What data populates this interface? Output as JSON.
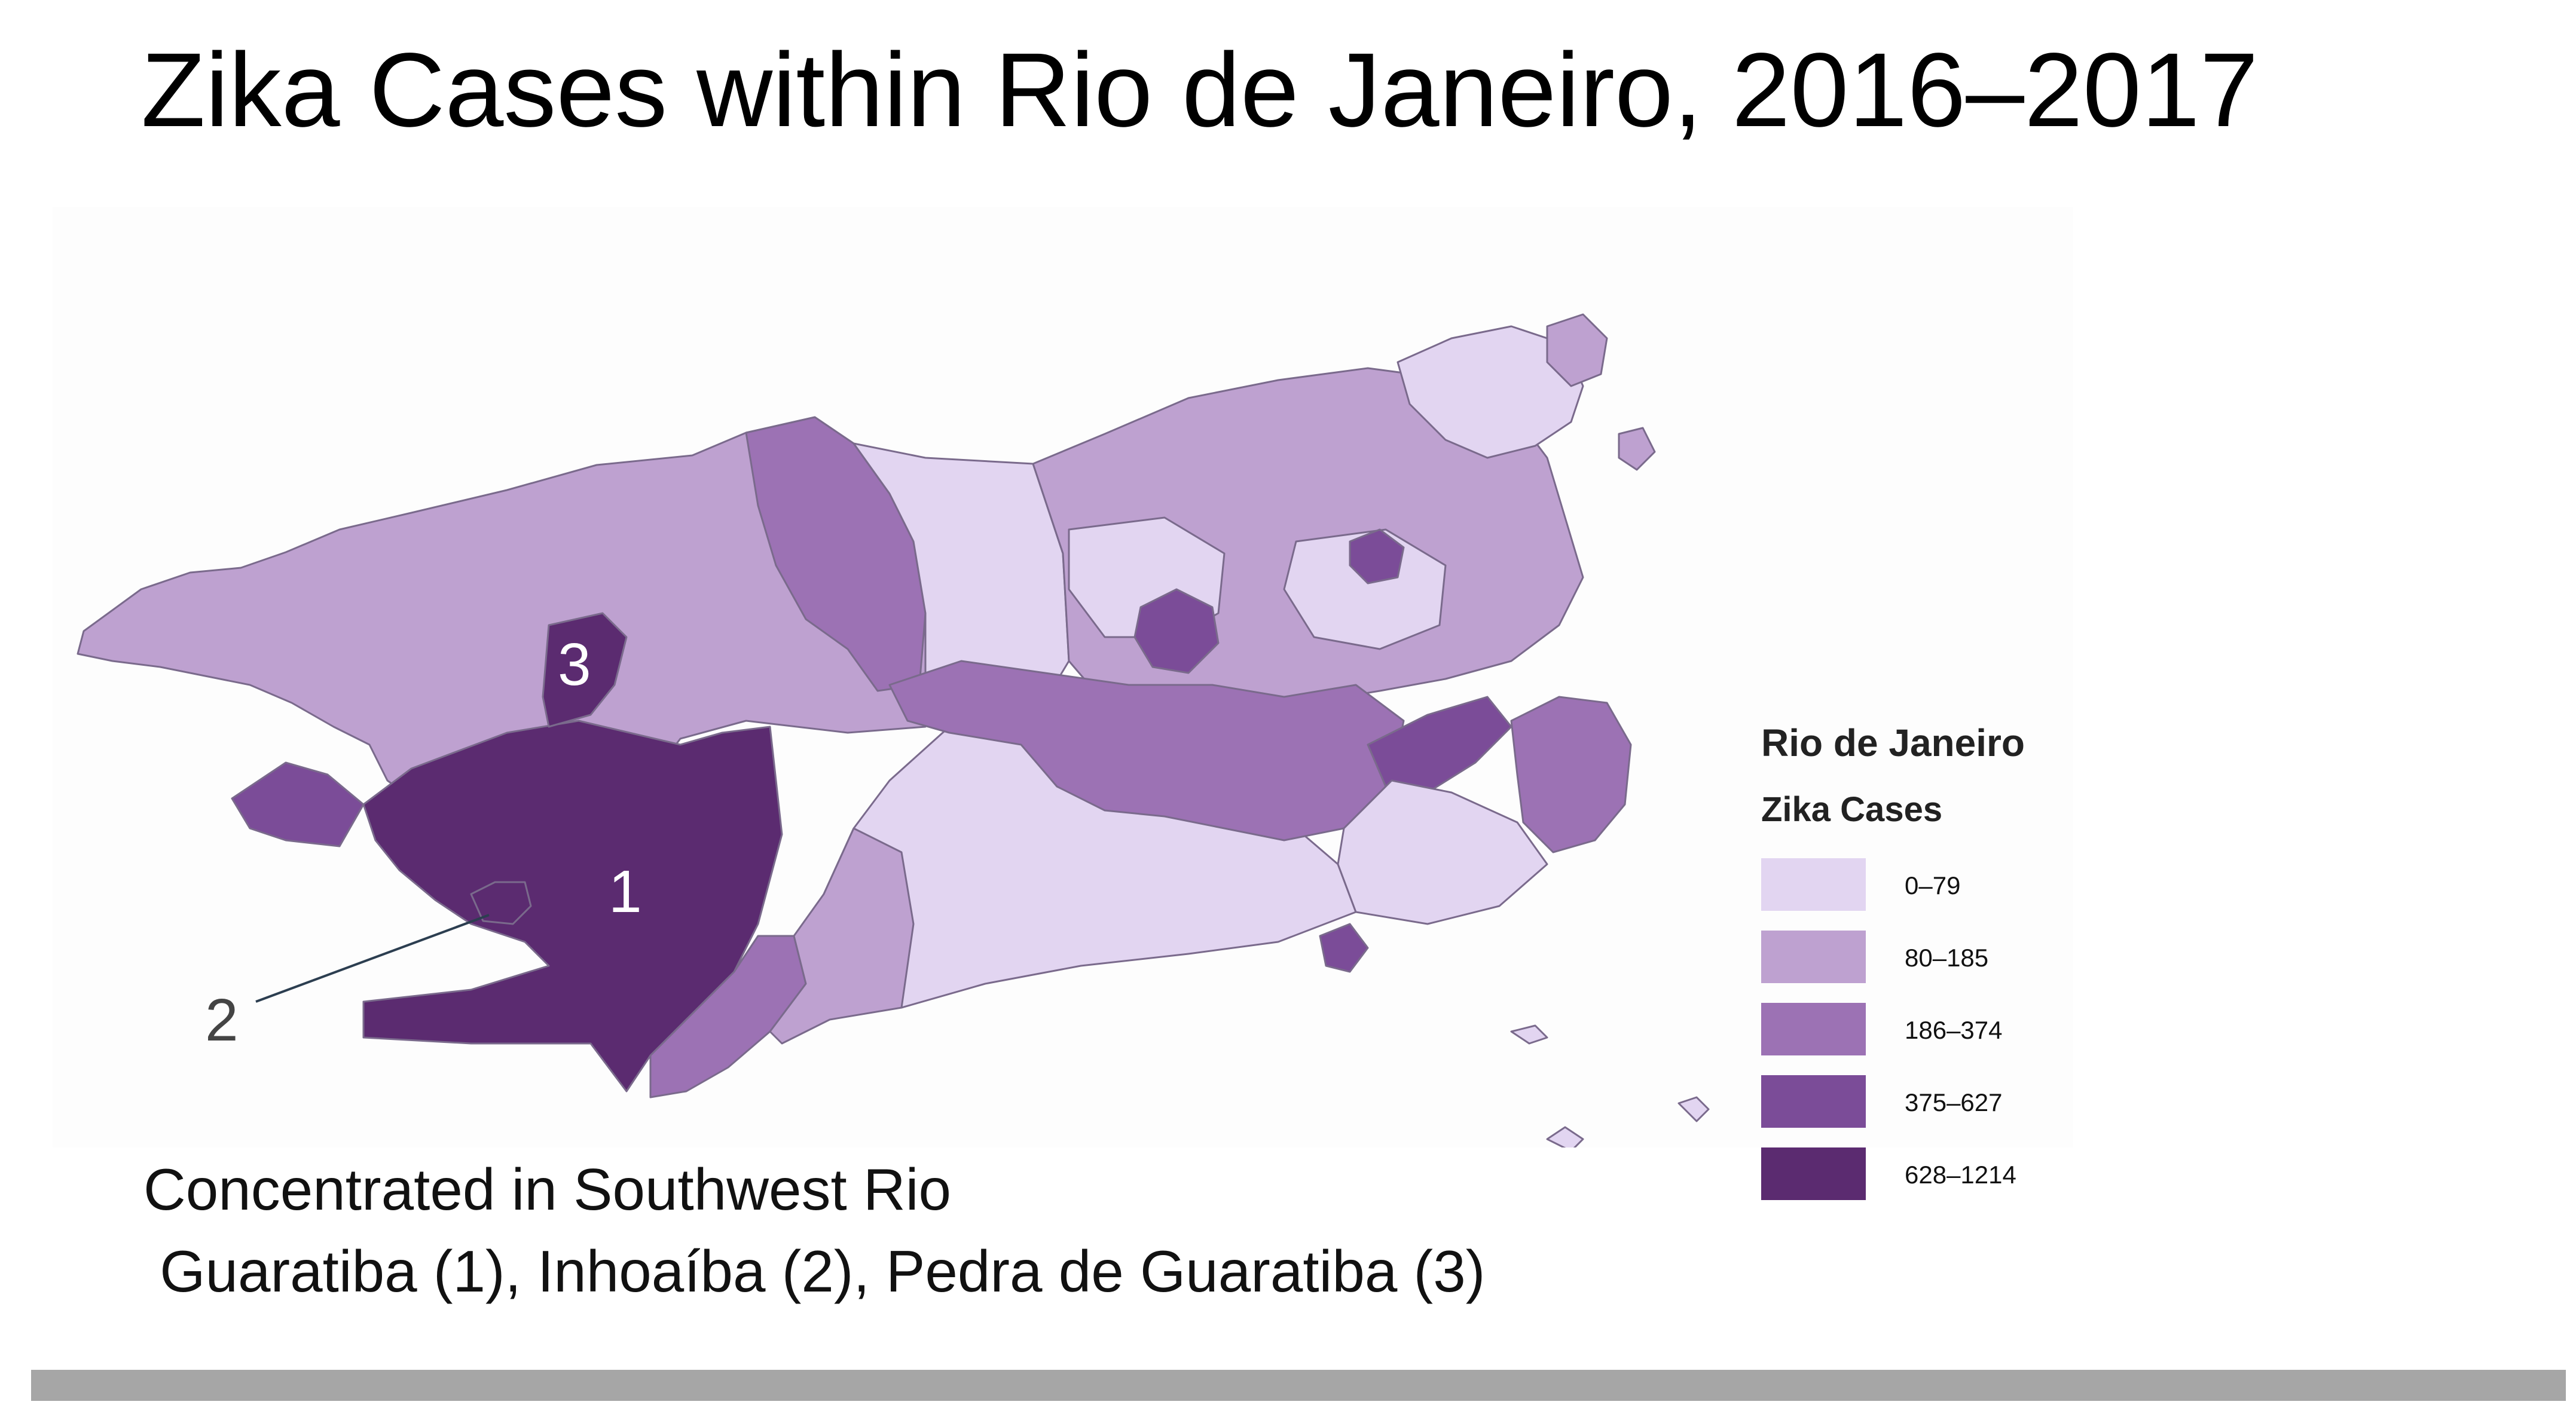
{
  "slide": {
    "title": "Zika Cases within Rio de Janeiro, 2016–2017",
    "caption_line1": "Concentrated in Southwest Rio",
    "caption_line2": " Guaratiba (1), Inhoaíba (2), Pedra de Guaratiba (3)"
  },
  "map": {
    "region_labels": [
      "1",
      "2",
      "3"
    ],
    "outline_color": "#7a6a8c",
    "callout_color": "#2c3e50"
  },
  "legend": {
    "title": "Rio de Janeiro",
    "subtitle": "Zika Cases",
    "classes": [
      {
        "label": "0–79",
        "color": "#e2d5f1"
      },
      {
        "label": "80–185",
        "color": "#bea1d0"
      },
      {
        "label": "186–374",
        "color": "#9c72b4"
      },
      {
        "label": "375–627",
        "color": "#7b4c98"
      },
      {
        "label": "628–1214",
        "color": "#5b2b70"
      }
    ]
  }
}
